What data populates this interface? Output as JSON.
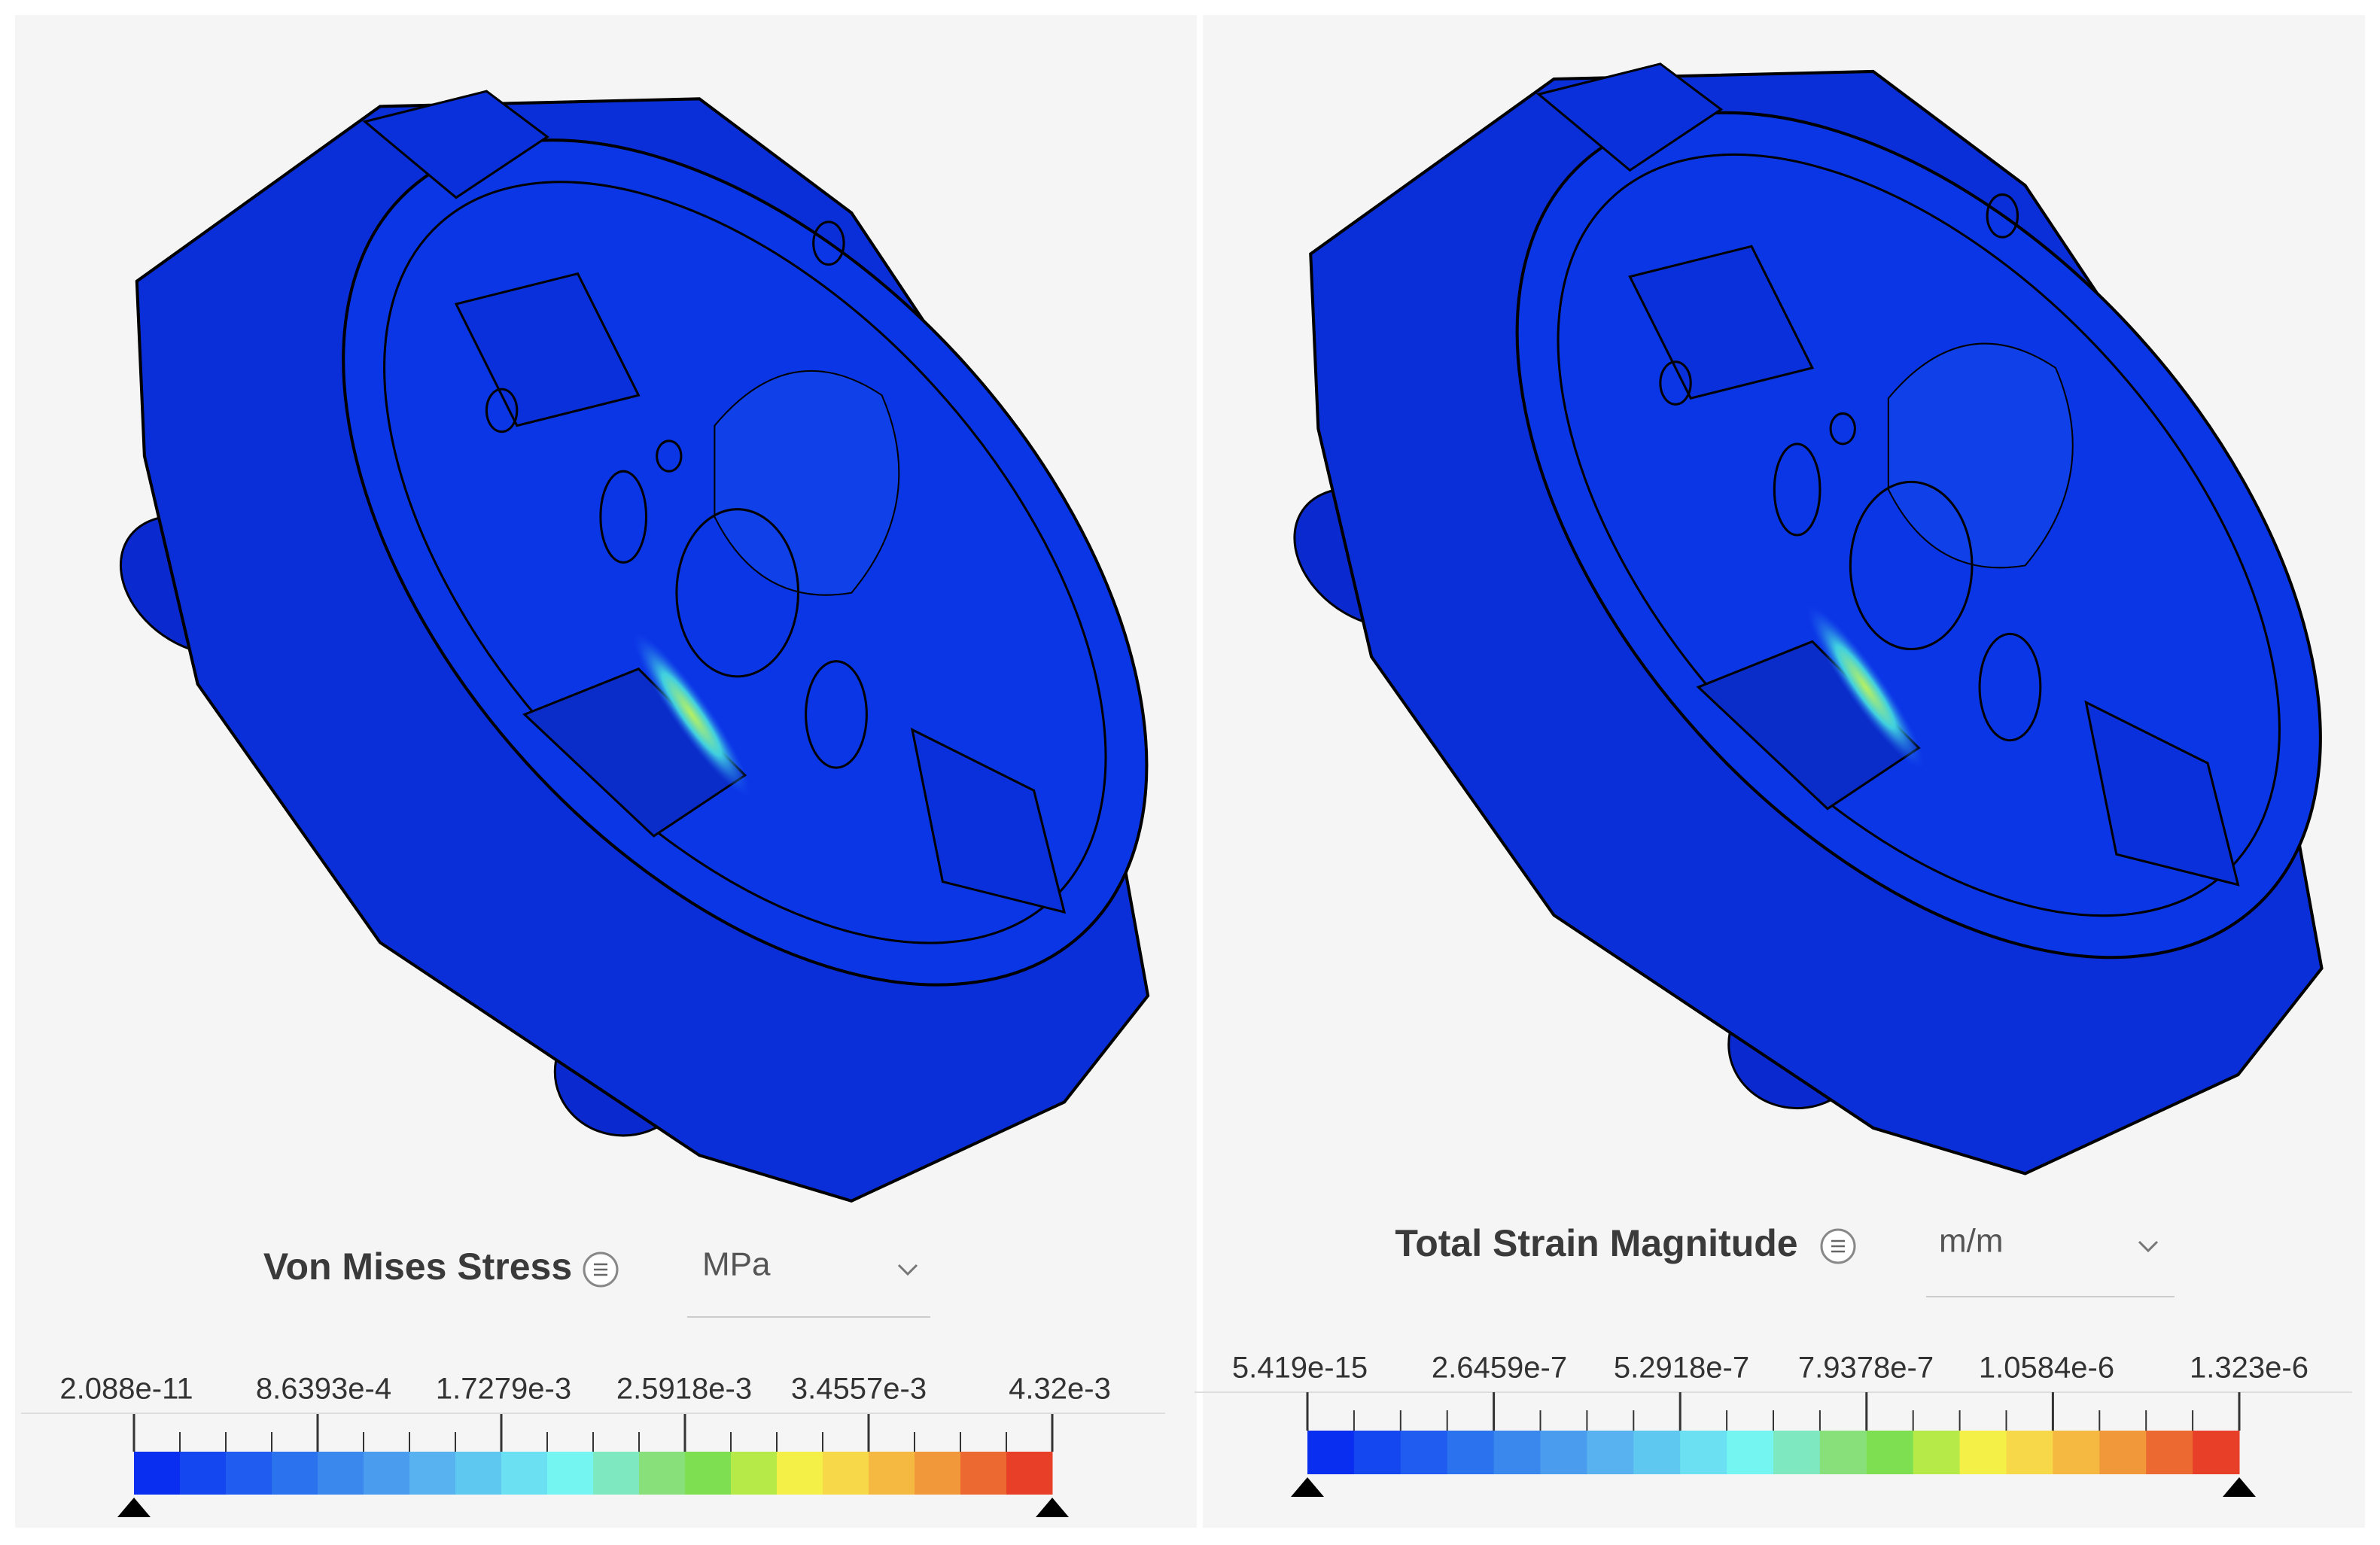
{
  "panels": [
    {
      "title": "Von Mises Stress",
      "unit": "MPa",
      "scale_labels": [
        "2.088e-11",
        "8.6393e-4",
        "1.7279e-3",
        "2.5918e-3",
        "3.4557e-3",
        "4.32e-3"
      ]
    },
    {
      "title": "Total Strain Magnitude",
      "unit": "m/m",
      "scale_labels": [
        "5.419e-15",
        "2.6459e-7",
        "5.2918e-7",
        "7.9378e-7",
        "1.0584e-6",
        "1.323e-6"
      ]
    }
  ],
  "colorbar": [
    "#0a2ef0",
    "#1447ef",
    "#1f5cef",
    "#2a72ee",
    "#3a88ee",
    "#4a9cee",
    "#57b2ef",
    "#5fc8f0",
    "#6ae0f2",
    "#74f5f2",
    "#7ee8c0",
    "#88e07a",
    "#7ee050",
    "#b6ea48",
    "#f5f048",
    "#f6d848",
    "#f5b840",
    "#f0983a",
    "#ec6a32",
    "#e84028"
  ]
}
